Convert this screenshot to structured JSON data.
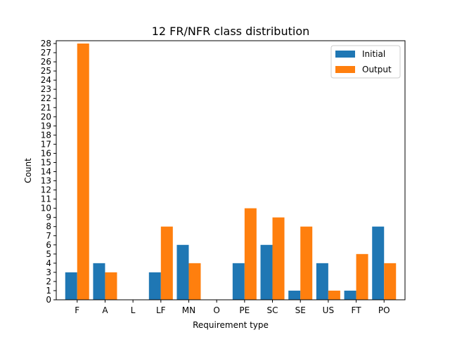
{
  "chart_data": {
    "type": "bar",
    "title": "12 FR/NFR class distribution",
    "xlabel": "Requirement type",
    "ylabel": "Count",
    "categories": [
      "F",
      "A",
      "L",
      "LF",
      "MN",
      "O",
      "PE",
      "SC",
      "SE",
      "US",
      "FT",
      "PO"
    ],
    "ylim": [
      0,
      28
    ],
    "yticks": [
      0,
      1,
      2,
      3,
      4,
      5,
      6,
      7,
      8,
      9,
      10,
      11,
      12,
      13,
      14,
      15,
      16,
      17,
      18,
      19,
      20,
      21,
      22,
      23,
      24,
      25,
      26,
      27,
      28
    ],
    "grid": false,
    "legend_position": "top-right",
    "series": [
      {
        "name": "Initial",
        "color": "#1f77b4",
        "values": [
          3,
          4,
          0,
          3,
          6,
          0,
          4,
          6,
          1,
          4,
          1,
          8
        ]
      },
      {
        "name": "Output",
        "color": "#ff7f0e",
        "values": [
          28,
          3,
          0,
          8,
          4,
          0,
          10,
          9,
          8,
          1,
          5,
          4
        ]
      }
    ]
  }
}
